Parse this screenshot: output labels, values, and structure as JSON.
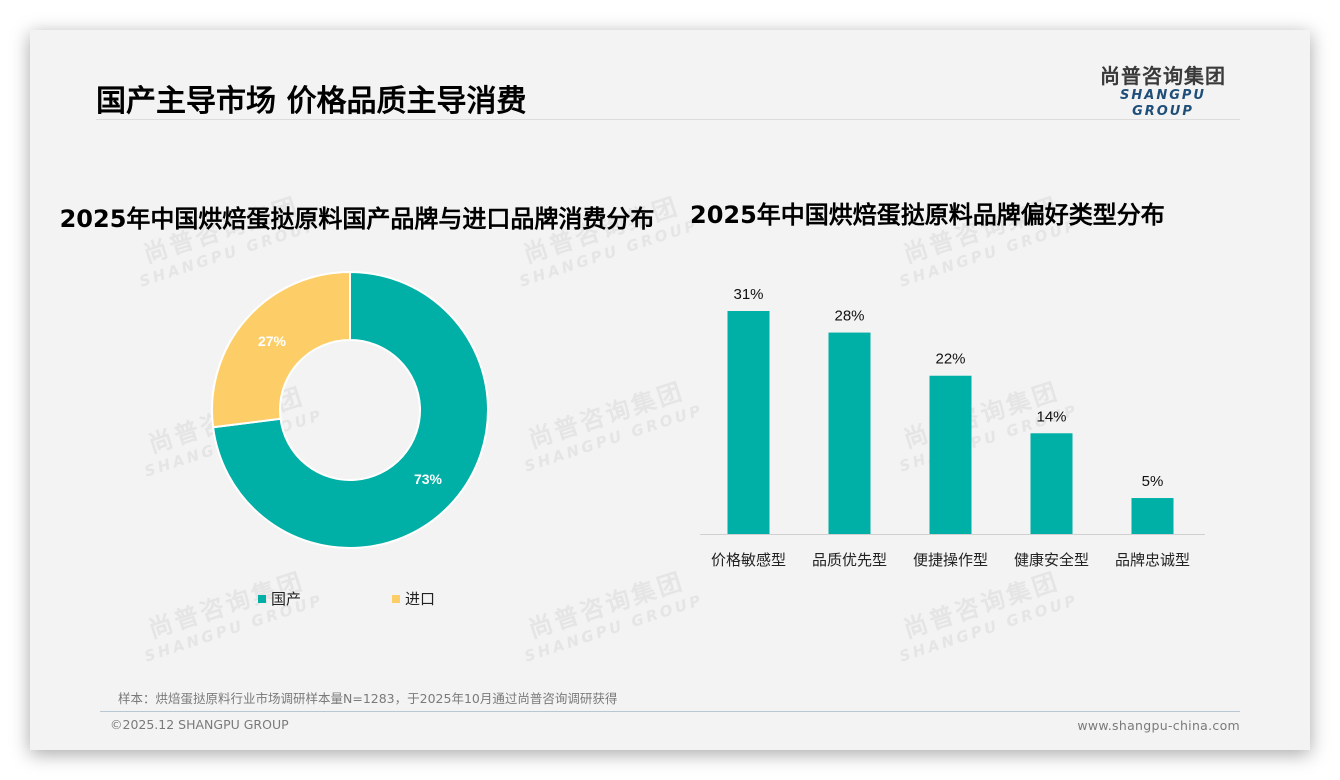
{
  "header": {
    "title": "国产主导市场 价格品质主导消费",
    "logo_cn": "尚普咨询集团",
    "logo_en": "SHANGPU GROUP"
  },
  "colors": {
    "teal": "#00AFA5",
    "yellow": "#FDCE68",
    "background": "#F3F3F3",
    "logo_blue": "#1F4E79"
  },
  "watermark": {
    "cn": "尚普咨询集团",
    "en": "SHANGPU GROUP"
  },
  "left_chart": {
    "title": "2025年中国烘焙蛋挞原料国产品牌与进口品牌消费分布",
    "legend": [
      {
        "label": "国产",
        "color": "#00AFA5"
      },
      {
        "label": "进口",
        "color": "#FDCE68"
      }
    ],
    "labels": [
      "73%",
      "27%"
    ]
  },
  "right_chart": {
    "title": "2025年中国烘焙蛋挞原料品牌偏好类型分布",
    "value_labels": [
      "31%",
      "28%",
      "22%",
      "14%",
      "5%"
    ],
    "categories": [
      "价格敏感型",
      "品质优先型",
      "便捷操作型",
      "健康安全型",
      "品牌忠诚型"
    ]
  },
  "chart_data": [
    {
      "type": "pie",
      "variant": "donut",
      "title": "2025年中国烘焙蛋挞原料国产品牌与进口品牌消费分布",
      "categories": [
        "国产",
        "进口"
      ],
      "values": [
        73,
        27
      ],
      "unit": "%",
      "colors": [
        "#00AFA5",
        "#FDCE68"
      ],
      "legend_position": "bottom"
    },
    {
      "type": "bar",
      "title": "2025年中国烘焙蛋挞原料品牌偏好类型分布",
      "categories": [
        "价格敏感型",
        "品质优先型",
        "便捷操作型",
        "健康安全型",
        "品牌忠诚型"
      ],
      "values": [
        31,
        28,
        22,
        14,
        5
      ],
      "unit": "%",
      "xlabel": "",
      "ylabel": "",
      "ylim": [
        0,
        31
      ],
      "grid": false,
      "colors": [
        "#00AFA5"
      ],
      "data_labels": true
    }
  ],
  "footer": {
    "sample_note": "样本：烘焙蛋挞原料行业市场调研样本量N=1283，于2025年10月通过尚普咨询调研获得",
    "copyright": "©2025.12 SHANGPU GROUP",
    "website": "www.shangpu-china.com"
  }
}
